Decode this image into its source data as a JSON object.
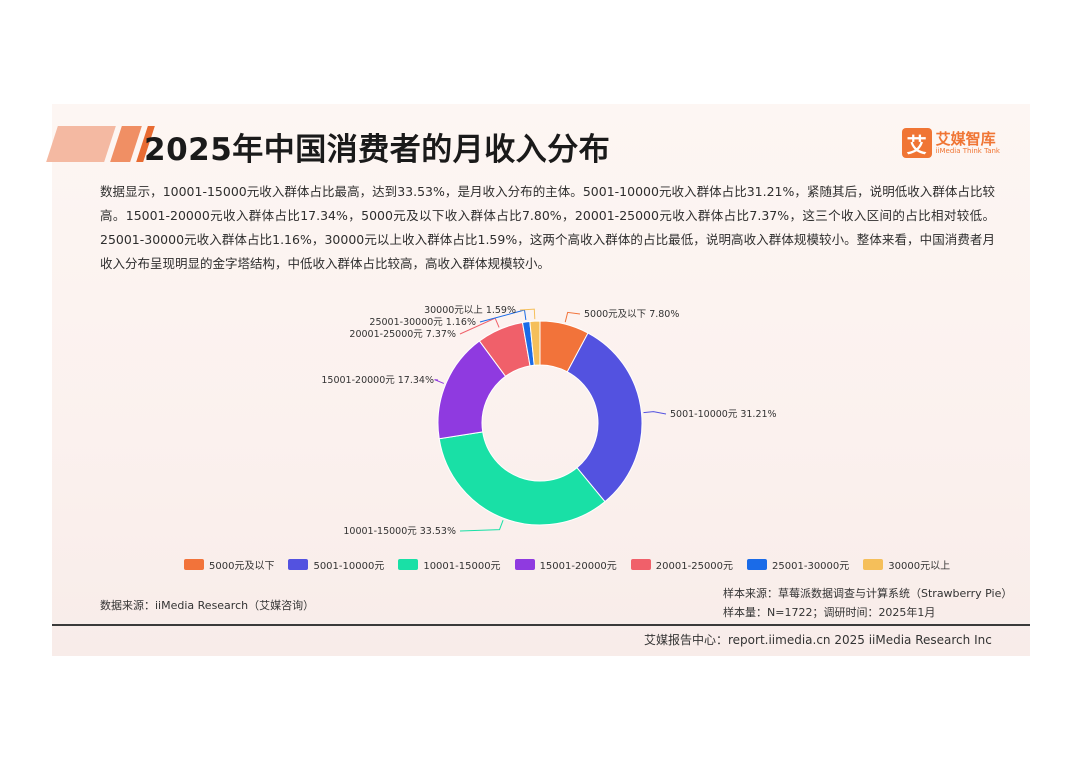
{
  "header": {
    "title": "2025年中国消费者的月收入分布",
    "logo_glyph": "艾",
    "logo_cn": "艾媒智库",
    "logo_en": "iiMedia Think Tank"
  },
  "description": "数据显示，10001-15000元收入群体占比最高，达到33.53%，是月收入分布的主体。5001-10000元收入群体占比31.21%，紧随其后，说明低收入群体占比较高。15001-20000元收入群体占比17.34%，5000元及以下收入群体占比7.80%，20001-25000元收入群体占比7.37%，这三个收入区间的占比相对较低。25001-30000元收入群体占比1.16%，30000元以上收入群体占比1.59%，这两个高收入群体的占比最低，说明高收入群体规模较小。整体来看，中国消费者月收入分布呈现明显的金字塔结构，中低收入群体占比较高，高收入群体规模较小。",
  "chart_data": {
    "type": "pie",
    "donut": true,
    "legend_position": "bottom",
    "unit": "%",
    "categories": [
      "5000元及以下",
      "5001-10000元",
      "10001-15000元",
      "15001-20000元",
      "20001-25000元",
      "25001-30000元",
      "30000元以上"
    ],
    "values": [
      7.8,
      31.21,
      33.53,
      17.34,
      7.37,
      1.16,
      1.59
    ],
    "colors": [
      "#f2733a",
      "#5352e0",
      "#19e0a6",
      "#8f3ae0",
      "#f0606a",
      "#1a6be8",
      "#f5bf5a"
    ],
    "labels": [
      "5000元及以下 7.80%",
      "5001-10000元 31.21%",
      "10001-15000元 33.53%",
      "15001-20000元 17.34%",
      "20001-25000元 7.37%",
      "25001-30000元 1.16%",
      "30000元以上 1.59%"
    ]
  },
  "source": {
    "left": "数据来源：iiMedia Research（艾媒咨询）",
    "sample_source": "样本来源：草莓派数据调查与计算系统（Strawberry Pie）",
    "sample_size": "样本量：N=1722；调研时间：2025年1月"
  },
  "footer": "艾媒报告中心：report.iimedia.cn  2025 iiMedia Research Inc"
}
